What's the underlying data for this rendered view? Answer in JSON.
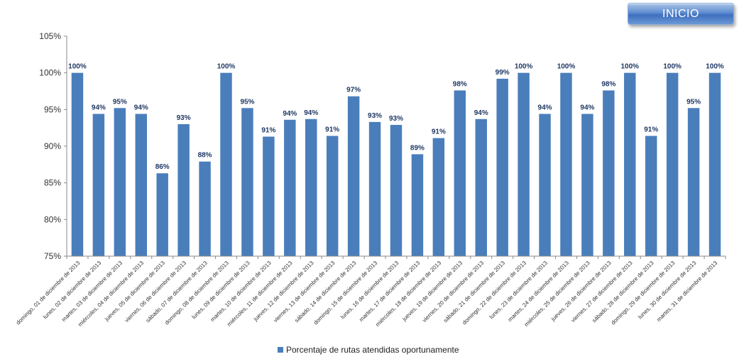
{
  "header": {
    "inicio_label": "INICIO"
  },
  "colors": {
    "bar": "#4a7ebb",
    "axis": "#888888",
    "grid": "#d9d9d9",
    "data_label": "#1f3864"
  },
  "chart_data": {
    "type": "bar",
    "title": "",
    "xlabel": "",
    "ylabel": "",
    "ylim": [
      75,
      105
    ],
    "y_ticks": [
      75,
      80,
      85,
      90,
      95,
      100,
      105
    ],
    "y_tick_format": "percent",
    "grid": false,
    "legend": "bottom",
    "categories": [
      "domingo, 01 de diciembre de 2013",
      "lunes, 02 de diciembre de 2013",
      "martes, 03 de diciembre de 2013",
      "miércoles, 04 de diciembre de 2013",
      "jueves, 05 de diciembre de 2013",
      "viernes, 06 de diciembre de 2013",
      "sábado, 07 de diciembre de 2013",
      "domingo, 08 de diciembre de 2013",
      "lunes, 09 de diciembre de 2013",
      "martes, 10 de diciembre de 2013",
      "miércoles, 11 de diciembre de 2013",
      "jueves, 12 de diciembre de 2013",
      "viernes, 13 de diciembre de 2013",
      "sábado, 14 de diciembre de 2013",
      "domingo, 15 de diciembre de 2013",
      "lunes, 16 de diciembre de 2013",
      "martes, 17 de diciembre de 2013",
      "miércoles, 18 de diciembre de 2013",
      "jueves, 19 de diciembre de 2013",
      "viernes, 20 de diciembre de 2013",
      "sábado, 21 de diciembre de 2013",
      "domingo, 22 de diciembre de 2013",
      "lunes, 23 de diciembre de 2013",
      "martes, 24 de diciembre de 2013",
      "miércoles, 25 de diciembre de 2013",
      "jueves, 26 de diciembre de 2013",
      "viernes, 27 de diciembre de 2013",
      "sábado, 28 de diciembre de 2013",
      "domingo, 29 de diciembre de 2013",
      "lunes, 30 de diciembre de 2013",
      "martes, 31 de diciembre de 2013"
    ],
    "series": [
      {
        "name": "Porcentaje de rutas atendidas oportunamente",
        "values": [
          100,
          94.4,
          95.2,
          94.4,
          86.3,
          93.0,
          87.9,
          100,
          95.2,
          91.3,
          93.6,
          93.7,
          91.4,
          96.8,
          93.3,
          92.9,
          88.9,
          91.1,
          97.6,
          93.7,
          99.2,
          100,
          94.4,
          100,
          94.4,
          97.6,
          100,
          91.4,
          100,
          95.2,
          100
        ],
        "labels": [
          "100%",
          "94%",
          "95%",
          "94%",
          "86%",
          "93%",
          "88%",
          "100%",
          "95%",
          "91%",
          "94%",
          "94%",
          "91%",
          "97%",
          "93%",
          "93%",
          "89%",
          "91%",
          "98%",
          "94%",
          "99%",
          "100%",
          "94%",
          "100%",
          "94%",
          "98%",
          "100%",
          "91%",
          "100%",
          "95%",
          "100%"
        ]
      }
    ]
  }
}
